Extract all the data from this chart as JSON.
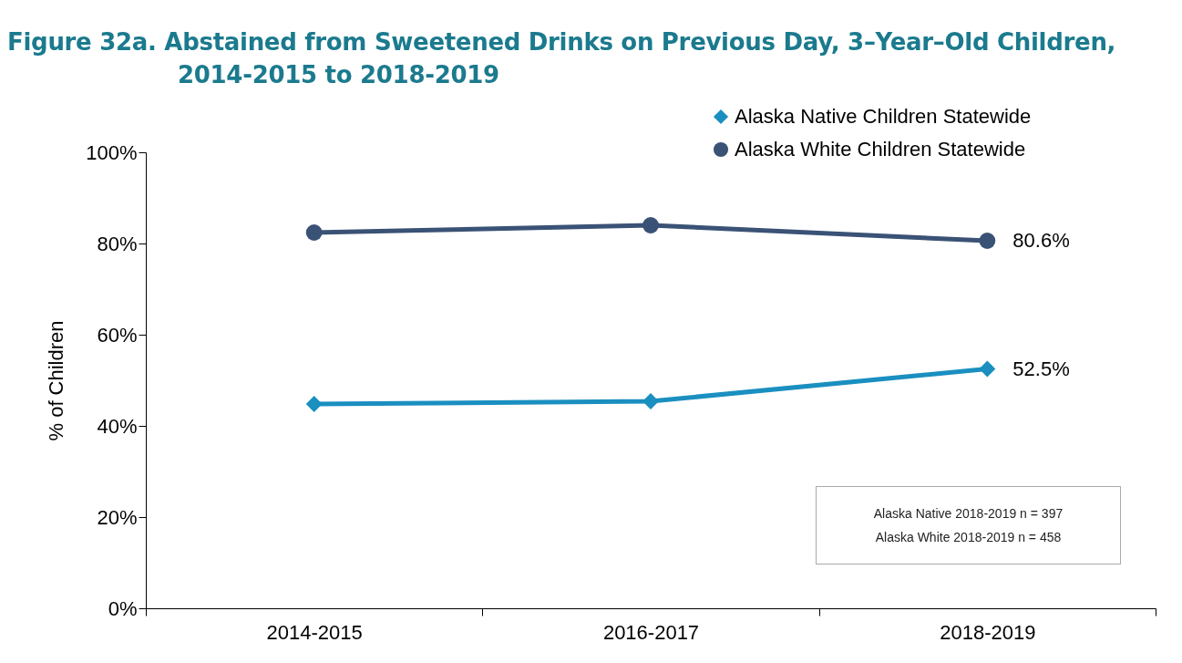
{
  "chart_data": {
    "type": "line",
    "title": "Figure 32a. Abstained from Sweetened Drinks on Previous Day, 3–Year–Old Children, 2014-2015 to 2018-2019",
    "ylabel": "% of Children",
    "categories": [
      "2014-2015",
      "2016-2017",
      "2018-2019"
    ],
    "series": [
      {
        "name": "Alaska Native Children Statewide",
        "color": "#1a8fc0",
        "marker": "diamond",
        "values": [
          44.8,
          45.4,
          52.5
        ],
        "value_labels": [
          null,
          null,
          "52.5%"
        ]
      },
      {
        "name": "Alaska White Children Statewide",
        "color": "#3a5275",
        "marker": "circle",
        "values": [
          82.4,
          84.0,
          80.6
        ],
        "value_labels": [
          null,
          null,
          "80.6%"
        ]
      }
    ],
    "ylim": [
      0,
      100
    ],
    "yticks": [
      {
        "value": 0,
        "label": "0%"
      },
      {
        "value": 20,
        "label": "20%"
      },
      {
        "value": 40,
        "label": "40%"
      },
      {
        "value": 60,
        "label": "60%"
      },
      {
        "value": 80,
        "label": "80%"
      },
      {
        "value": 100,
        "label": "100%"
      }
    ],
    "grid": false,
    "legend": "top right",
    "annotations": [
      "Alaska Native 2018-2019 n = 397",
      "Alaska White 2018-2019 n = 458"
    ]
  }
}
